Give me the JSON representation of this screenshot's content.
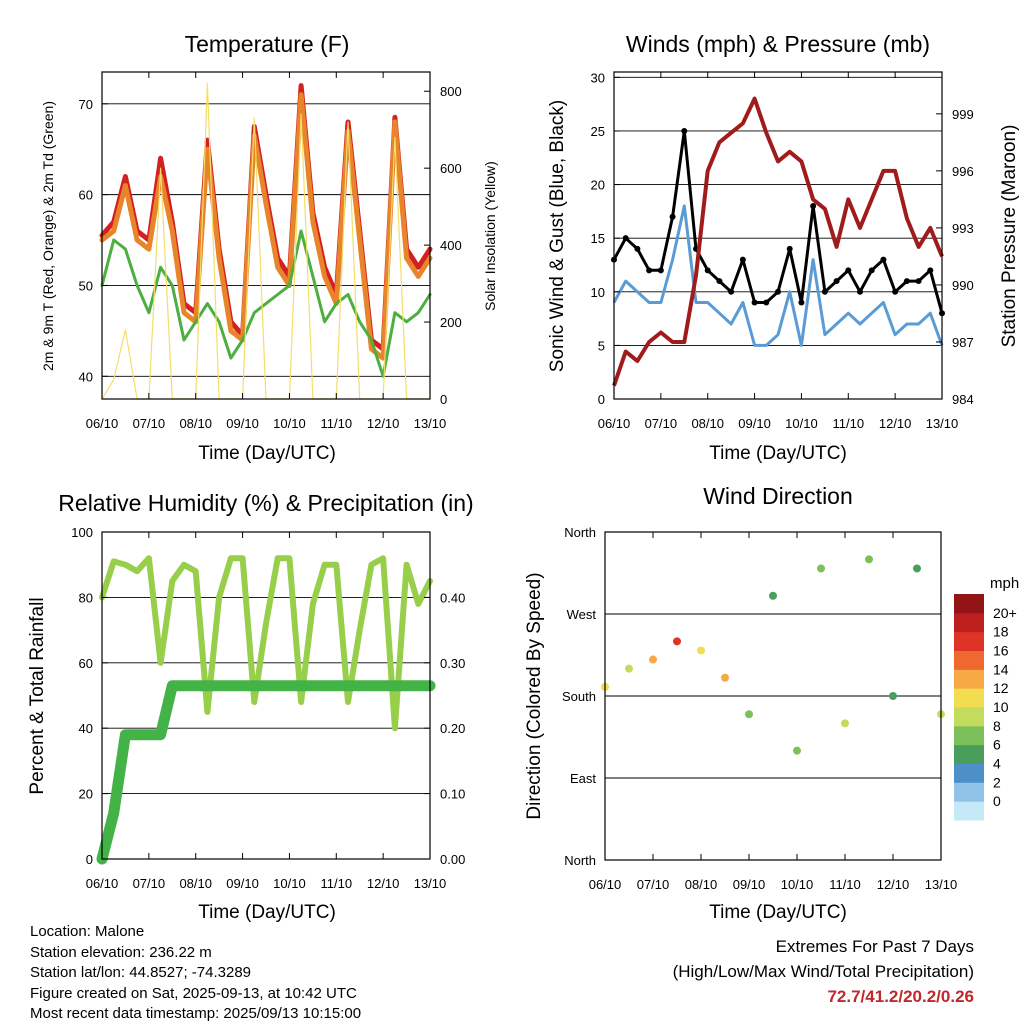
{
  "x_ticks": [
    "06/10",
    "07/10",
    "08/10",
    "09/10",
    "10/10",
    "11/10",
    "12/10",
    "13/10"
  ],
  "x_label": "Time (Day/UTC)",
  "info": {
    "location": "Location: Malone",
    "elevation": "Station elevation: 236.22 m",
    "latlon": "Station lat/lon: 44.8527; -74.3289",
    "created": "Figure created on Sat, 2025-09-13, at 10:42 UTC",
    "timestamp": "Most recent data timestamp: 2025/09/13 10:15:00"
  },
  "extremes": {
    "title": "Extremes For Past 7 Days",
    "subtitle": "(High/Low/Max Wind/Total Precipitation)",
    "values": "72.7/41.2/20.2/0.26",
    "color": "#c0282d"
  },
  "colors": {
    "temp2m": "#e8842a",
    "temp9m": "#d42020",
    "dew": "#4caf3f",
    "solar": "#f5dd6a",
    "gust": "#000000",
    "wind": "#5b9bd5",
    "pressure": "#a01c1c",
    "rh": "#97cf4a",
    "precip": "#44b347"
  },
  "chart_data": [
    {
      "type": "line",
      "title": "Temperature (F)",
      "ylabel": "2m & 9m T (Red, Orange) & 2m Td (Green)",
      "y2label": "Solar Insolation (Yellow)",
      "ylim": [
        37.5,
        73.5
      ],
      "y_ticks": [
        "40",
        "50",
        "60",
        "70"
      ],
      "y2lim": [
        0,
        850
      ],
      "y2_ticks": [
        "0",
        "200",
        "400",
        "600",
        "800"
      ],
      "grid": true,
      "x": [
        0,
        0.25,
        0.5,
        0.75,
        1,
        1.25,
        1.5,
        1.75,
        2,
        2.25,
        2.5,
        2.75,
        3,
        3.25,
        3.5,
        3.75,
        4,
        4.25,
        4.5,
        4.75,
        5,
        5.25,
        5.5,
        5.75,
        6,
        6.25,
        6.5,
        6.75,
        7
      ],
      "series": [
        {
          "key": "temp9m",
          "values": [
            55.5,
            57,
            62,
            56,
            55,
            64,
            57,
            48,
            47,
            66,
            54,
            46,
            44.5,
            67.5,
            60,
            53,
            51,
            72,
            58,
            52,
            49,
            68,
            56,
            44,
            43,
            68.5,
            54,
            52,
            54
          ]
        },
        {
          "key": "temp2m",
          "values": [
            55,
            56,
            61,
            55,
            54,
            62,
            56,
            47,
            46,
            65,
            53,
            45,
            44,
            66.5,
            59,
            52,
            50,
            71,
            57,
            51,
            48,
            67,
            55,
            43,
            42,
            68,
            53,
            51,
            53
          ]
        },
        {
          "key": "dew",
          "values": [
            50,
            55,
            54,
            50,
            47,
            52,
            50,
            44,
            46,
            48,
            46,
            42,
            44,
            47,
            48,
            49,
            50,
            56,
            51,
            46,
            48,
            49,
            46,
            44,
            40,
            47,
            46,
            47,
            49
          ]
        },
        {
          "key": "solar",
          "axis": "right",
          "values": [
            0,
            50,
            180,
            0,
            0,
            600,
            0,
            0,
            0,
            820,
            0,
            0,
            0,
            730,
            0,
            0,
            0,
            740,
            0,
            0,
            0,
            720,
            0,
            0,
            0,
            680,
            0,
            0,
            0
          ]
        }
      ]
    },
    {
      "type": "line",
      "title": "Winds (mph) & Pressure (mb)",
      "ylabel": "Sonic Wind & Gust (Blue, Black)",
      "y2label": "Station Pressure (Maroon)",
      "ylim": [
        0,
        30.5
      ],
      "y_ticks": [
        "0",
        "5",
        "10",
        "15",
        "20",
        "25",
        "30"
      ],
      "y2lim": [
        984,
        1001.2
      ],
      "y2_ticks": [
        "984",
        "987",
        "990",
        "993",
        "996",
        "999"
      ],
      "grid": true,
      "x": [
        0,
        0.25,
        0.5,
        0.75,
        1,
        1.25,
        1.5,
        1.75,
        2,
        2.25,
        2.5,
        2.75,
        3,
        3.25,
        3.5,
        3.75,
        4,
        4.25,
        4.5,
        4.75,
        5,
        5.25,
        5.5,
        5.75,
        6,
        6.25,
        6.5,
        6.75,
        7
      ],
      "series": [
        {
          "key": "gust",
          "values": [
            13,
            15,
            14,
            12,
            12,
            17,
            25,
            14,
            12,
            11,
            10,
            13,
            9,
            9,
            10,
            14,
            9,
            18,
            10,
            11,
            12,
            10,
            12,
            13,
            10,
            11,
            11,
            12,
            8
          ]
        },
        {
          "key": "wind",
          "values": [
            9,
            11,
            10,
            9,
            9,
            13,
            18,
            9,
            9,
            8,
            7,
            9,
            5,
            5,
            6,
            10,
            5,
            13,
            6,
            7,
            8,
            7,
            8,
            9,
            6,
            7,
            7,
            8,
            5
          ]
        },
        {
          "key": "pressure",
          "axis": "right",
          "values": [
            984.7,
            986.5,
            986,
            987,
            987.5,
            987,
            987,
            990.5,
            996,
            997.5,
            998,
            998.5,
            999.8,
            998,
            996.5,
            997,
            996.5,
            994.5,
            994,
            992,
            994.5,
            993,
            994.5,
            996,
            996,
            993.5,
            992,
            993,
            991.5
          ]
        }
      ]
    },
    {
      "type": "line",
      "title": "Relative Humidity (%) & Precipitation (in)",
      "ylabel": "Percent & Total Rainfall",
      "ylim": [
        0,
        100
      ],
      "y_ticks": [
        "0",
        "20",
        "40",
        "60",
        "80",
        "100"
      ],
      "y2lim": [
        0,
        0.5
      ],
      "y2_ticks": [
        "0.00",
        "0.10",
        "0.20",
        "0.30",
        "0.40"
      ],
      "grid": true,
      "x": [
        0,
        0.25,
        0.5,
        0.75,
        1,
        1.25,
        1.5,
        1.75,
        2,
        2.25,
        2.5,
        2.75,
        3,
        3.25,
        3.5,
        3.75,
        4,
        4.25,
        4.5,
        4.75,
        5,
        5.25,
        5.5,
        5.75,
        6,
        6.25,
        6.5,
        6.75,
        7
      ],
      "series": [
        {
          "key": "rh",
          "values": [
            80,
            91,
            90,
            88,
            92,
            60,
            85,
            90,
            88,
            45,
            80,
            92,
            92,
            48,
            72,
            92,
            92,
            48,
            78,
            90,
            90,
            48,
            70,
            90,
            92,
            40,
            90,
            78,
            85
          ]
        },
        {
          "key": "precip",
          "axis": "right",
          "values": [
            0,
            0.07,
            0.19,
            0.19,
            0.19,
            0.19,
            0.265,
            0.265,
            0.265,
            0.265,
            0.265,
            0.265,
            0.265,
            0.265,
            0.265,
            0.265,
            0.265,
            0.265,
            0.265,
            0.265,
            0.265,
            0.265,
            0.265,
            0.265,
            0.265,
            0.265,
            0.265,
            0.265,
            0.265
          ]
        }
      ]
    },
    {
      "type": "scatter",
      "title": "Wind Direction",
      "ylabel": "Direction (Colored By Speed)",
      "ylim": [
        0,
        360
      ],
      "y_ticks": [
        "North",
        "East",
        "South",
        "West",
        "North"
      ],
      "colorbar_title": "mph",
      "colorbar_labels": [
        "0",
        "2",
        "4",
        "6",
        "8",
        "10",
        "12",
        "14",
        "16",
        "18",
        "20+"
      ],
      "colorbar_colors": [
        "#c6e9f7",
        "#8fc3e8",
        "#4d8fc9",
        "#4a9e5c",
        "#7cc05a",
        "#c3dc5d",
        "#f2dc50",
        "#f7a945",
        "#ef6830",
        "#de3426",
        "#bd1f1f",
        "#931414"
      ],
      "x": [
        0,
        0.5,
        1,
        1.5,
        2,
        2.5,
        3,
        3.5,
        4,
        4.5,
        5,
        5.5,
        6,
        6.5,
        7
      ],
      "values": [
        190,
        210,
        220,
        240,
        230,
        200,
        160,
        290,
        120,
        320,
        150,
        330,
        180,
        320,
        160
      ],
      "speeds": [
        10,
        8,
        12,
        16,
        10,
        12,
        6,
        4,
        6,
        6,
        8,
        6,
        4,
        4,
        8
      ]
    }
  ]
}
